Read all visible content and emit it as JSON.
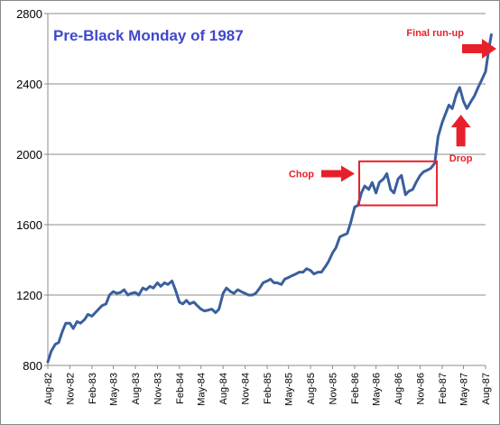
{
  "chart_data": {
    "type": "line",
    "title": "Pre-Black Monday of 1987",
    "title_color": "#3f48cc",
    "series_color": "#3a5f9e",
    "annotation_color": "#e8202a",
    "grid": true,
    "ylim": [
      800,
      2800
    ],
    "yticks": [
      800,
      1200,
      1600,
      2000,
      2400,
      2800
    ],
    "xlim": [
      "1982-08",
      "1987-08"
    ],
    "xticks": [
      "Aug-82",
      "Nov-82",
      "Feb-83",
      "May-83",
      "Aug-83",
      "Nov-83",
      "Feb-84",
      "May-84",
      "Aug-84",
      "Nov-84",
      "Feb-85",
      "May-85",
      "Aug-85",
      "Nov-85",
      "Feb-86",
      "May-86",
      "Aug-86",
      "Nov-86",
      "Feb-87",
      "May-87",
      "Aug-87"
    ],
    "series": [
      {
        "x": [
          "1982-08-01",
          "1982-08-15",
          "1982-09-01",
          "1982-09-15",
          "1982-10-01",
          "1982-10-15",
          "1982-11-01",
          "1982-11-15",
          "1982-12-01",
          "1982-12-15",
          "1983-01-01",
          "1983-01-15",
          "1983-02-01",
          "1983-02-15",
          "1983-03-01",
          "1983-03-15",
          "1983-04-01",
          "1983-04-15",
          "1983-05-01",
          "1983-05-15",
          "1983-06-01",
          "1983-06-15",
          "1983-07-01",
          "1983-07-15",
          "1983-08-01",
          "1983-08-15",
          "1983-09-01",
          "1983-09-15",
          "1983-10-01",
          "1983-10-15",
          "1983-11-01",
          "1983-11-15",
          "1983-12-01",
          "1983-12-15",
          "1984-01-01",
          "1984-01-15",
          "1984-02-01",
          "1984-02-15",
          "1984-03-01",
          "1984-03-15",
          "1984-04-01",
          "1984-04-15",
          "1984-05-01",
          "1984-05-15",
          "1984-06-01",
          "1984-06-15",
          "1984-07-01",
          "1984-07-15",
          "1984-08-01",
          "1984-08-15",
          "1984-09-01",
          "1984-09-15",
          "1984-10-01",
          "1984-10-15",
          "1984-11-01",
          "1984-11-15",
          "1984-12-01",
          "1984-12-15",
          "1985-01-01",
          "1985-01-15",
          "1985-02-01",
          "1985-02-15",
          "1985-03-01",
          "1985-03-15",
          "1985-04-01",
          "1985-04-15",
          "1985-05-01",
          "1985-05-15",
          "1985-06-01",
          "1985-06-15",
          "1985-07-01",
          "1985-07-15",
          "1985-08-01",
          "1985-08-15",
          "1985-09-01",
          "1985-09-15",
          "1985-10-01",
          "1985-10-15",
          "1985-11-01",
          "1985-11-15",
          "1985-12-01",
          "1985-12-15",
          "1986-01-01",
          "1986-01-15",
          "1986-02-01",
          "1986-02-15",
          "1986-03-01",
          "1986-03-15",
          "1986-04-01",
          "1986-04-15",
          "1986-05-01",
          "1986-05-15",
          "1986-06-01",
          "1986-06-15",
          "1986-07-01",
          "1986-07-15",
          "1986-08-01",
          "1986-08-15",
          "1986-09-01",
          "1986-09-15",
          "1986-10-01",
          "1986-10-15",
          "1986-11-01",
          "1986-11-15",
          "1986-12-01",
          "1986-12-15",
          "1987-01-01",
          "1987-01-15",
          "1987-02-01",
          "1987-02-15",
          "1987-03-01",
          "1987-03-15",
          "1987-04-01",
          "1987-04-15",
          "1987-05-01",
          "1987-05-15",
          "1987-06-01",
          "1987-06-15",
          "1987-07-01",
          "1987-07-15",
          "1987-08-01",
          "1987-08-15",
          "1987-08-25"
        ],
        "y": [
          820,
          880,
          920,
          930,
          995,
          1040,
          1040,
          1010,
          1050,
          1040,
          1060,
          1090,
          1080,
          1100,
          1120,
          1140,
          1150,
          1200,
          1220,
          1210,
          1215,
          1230,
          1200,
          1210,
          1215,
          1200,
          1240,
          1230,
          1250,
          1240,
          1270,
          1250,
          1270,
          1260,
          1280,
          1230,
          1160,
          1150,
          1170,
          1150,
          1160,
          1140,
          1120,
          1110,
          1115,
          1120,
          1100,
          1120,
          1210,
          1240,
          1220,
          1210,
          1230,
          1220,
          1210,
          1200,
          1200,
          1210,
          1240,
          1270,
          1280,
          1290,
          1270,
          1270,
          1260,
          1290,
          1300,
          1310,
          1320,
          1330,
          1330,
          1350,
          1340,
          1320,
          1330,
          1330,
          1360,
          1390,
          1440,
          1470,
          1530,
          1540,
          1550,
          1610,
          1700,
          1710,
          1780,
          1820,
          1800,
          1840,
          1780,
          1840,
          1860,
          1890,
          1800,
          1780,
          1860,
          1880,
          1770,
          1790,
          1800,
          1840,
          1880,
          1900,
          1910,
          1920,
          1950,
          2100,
          2180,
          2230,
          2280,
          2260,
          2340,
          2380,
          2300,
          2260,
          2300,
          2330,
          2380,
          2420,
          2470,
          2600,
          2680
        ]
      }
    ],
    "annotations": [
      {
        "text": "Final run-up",
        "x": "1987-06-01",
        "y": 2600
      },
      {
        "text": "Chop",
        "x": "1985-09-01",
        "y": 1890
      },
      {
        "text": "Drop",
        "x": "1987-04-20",
        "y": 1960
      }
    ]
  }
}
